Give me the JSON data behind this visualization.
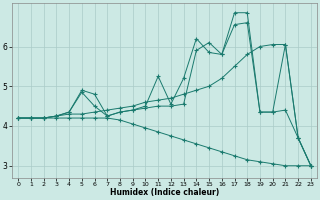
{
  "xlabel": "Humidex (Indice chaleur)",
  "bg_color": "#cce9e4",
  "line_color": "#1a7a6e",
  "grid_color": "#b8d8d4",
  "xlim": [
    0,
    23
  ],
  "ylim": [
    2.7,
    7.1
  ],
  "yticks": [
    3,
    4,
    5,
    6
  ],
  "xticks": [
    0,
    1,
    2,
    3,
    4,
    5,
    6,
    7,
    8,
    9,
    10,
    11,
    12,
    13,
    14,
    15,
    16,
    17,
    18,
    19,
    20,
    21,
    22,
    23
  ],
  "series": [
    {
      "x": [
        0,
        1,
        2,
        3,
        4,
        5,
        6,
        7,
        8,
        9,
        10,
        11,
        12,
        13,
        14,
        15,
        16,
        17,
        18,
        19,
        20,
        21,
        22,
        23
      ],
      "y": [
        4.2,
        4.2,
        4.2,
        4.25,
        4.35,
        4.9,
        4.8,
        4.25,
        4.35,
        4.4,
        4.5,
        5.25,
        4.55,
        5.2,
        6.2,
        5.85,
        5.8,
        6.55,
        6.6,
        4.35,
        4.35,
        6.05,
        3.7,
        3.0
      ]
    },
    {
      "x": [
        0,
        1,
        2,
        3,
        4,
        5,
        6,
        7,
        8,
        9,
        10,
        11,
        12,
        13,
        14,
        15,
        16,
        17,
        18,
        19,
        20,
        21,
        22,
        23
      ],
      "y": [
        4.2,
        4.2,
        4.2,
        4.25,
        4.35,
        4.85,
        4.5,
        4.25,
        4.35,
        4.4,
        4.45,
        4.5,
        4.5,
        4.55,
        5.9,
        6.1,
        5.8,
        6.85,
        6.85,
        4.35,
        4.35,
        4.4,
        3.7,
        3.0
      ]
    },
    {
      "x": [
        0,
        1,
        2,
        3,
        4,
        5,
        6,
        7,
        8,
        9,
        10,
        11,
        12,
        13,
        14,
        15,
        16,
        17,
        18,
        19,
        20,
        21,
        22,
        23
      ],
      "y": [
        4.2,
        4.2,
        4.2,
        4.25,
        4.3,
        4.3,
        4.35,
        4.4,
        4.45,
        4.5,
        4.6,
        4.65,
        4.7,
        4.8,
        4.9,
        5.0,
        5.2,
        5.5,
        5.8,
        6.0,
        6.05,
        6.05,
        3.7,
        3.0
      ]
    },
    {
      "x": [
        0,
        1,
        2,
        3,
        4,
        5,
        6,
        7,
        8,
        9,
        10,
        11,
        12,
        13,
        14,
        15,
        16,
        17,
        18,
        19,
        20,
        21,
        22,
        23
      ],
      "y": [
        4.2,
        4.2,
        4.2,
        4.2,
        4.2,
        4.2,
        4.2,
        4.2,
        4.15,
        4.05,
        3.95,
        3.85,
        3.75,
        3.65,
        3.55,
        3.45,
        3.35,
        3.25,
        3.15,
        3.1,
        3.05,
        3.0,
        3.0,
        3.0
      ]
    }
  ]
}
